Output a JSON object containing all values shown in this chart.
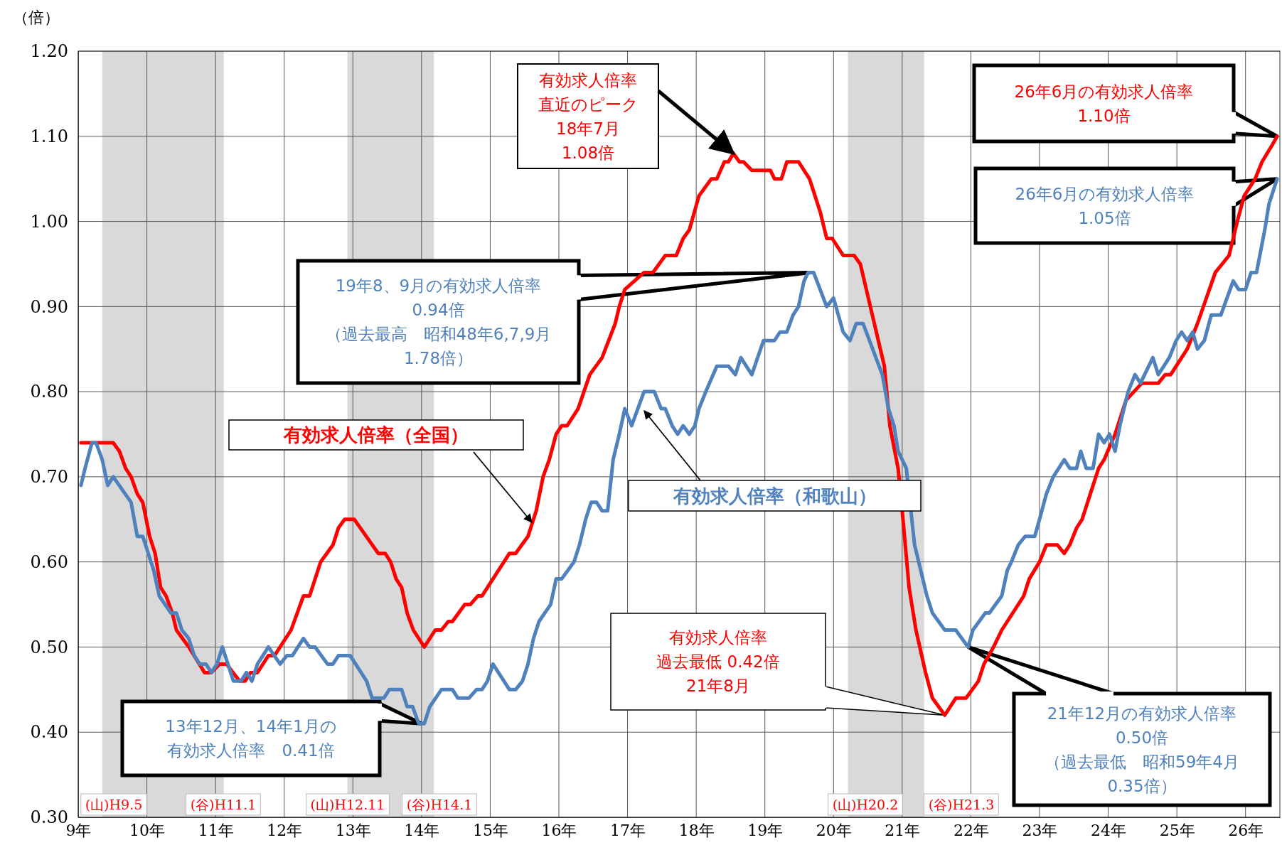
{
  "chart_data": {
    "type": "line",
    "ylabel": "（倍）",
    "xlim": [
      9,
      26.5
    ],
    "xticks": [
      {
        "value": 9,
        "label": "9年"
      },
      {
        "value": 10,
        "label": "10年"
      },
      {
        "value": 11,
        "label": "11年"
      },
      {
        "value": 12,
        "label": "12年"
      },
      {
        "value": 13,
        "label": "13年"
      },
      {
        "value": 14,
        "label": "14年"
      },
      {
        "value": 15,
        "label": "15年"
      },
      {
        "value": 16,
        "label": "16年"
      },
      {
        "value": 17,
        "label": "17年"
      },
      {
        "value": 18,
        "label": "18年"
      },
      {
        "value": 19,
        "label": "19年"
      },
      {
        "value": 20,
        "label": "20年"
      },
      {
        "value": 21,
        "label": "21年"
      },
      {
        "value": 22,
        "label": "22年"
      },
      {
        "value": 23,
        "label": "23年"
      },
      {
        "value": 24,
        "label": "24年"
      },
      {
        "value": 25,
        "label": "25年"
      },
      {
        "value": 26,
        "label": "26年"
      }
    ],
    "ylim": [
      0.3,
      1.2
    ],
    "yticks": [
      {
        "value": 0.3,
        "label": "0.30"
      },
      {
        "value": 0.4,
        "label": "0.40"
      },
      {
        "value": 0.5,
        "label": "0.50"
      },
      {
        "value": 0.6,
        "label": "0.60"
      },
      {
        "value": 0.7,
        "label": "0.70"
      },
      {
        "value": 0.8,
        "label": "0.80"
      },
      {
        "value": 0.9,
        "label": "0.90"
      },
      {
        "value": 1.0,
        "label": "1.00"
      },
      {
        "value": 1.1,
        "label": "1.10"
      },
      {
        "value": 1.2,
        "label": "1.20"
      }
    ],
    "grid": true,
    "legend": false,
    "marker": "none",
    "line_style": "solid",
    "bands": [
      {
        "axis": "x",
        "from": 9.35,
        "to": 11.12,
        "color": "#d9d9d9"
      },
      {
        "axis": "x",
        "from": 12.92,
        "to": 14.18,
        "color": "#d9d9d9"
      },
      {
        "axis": "x",
        "from": 20.21,
        "to": 21.32,
        "color": "#d9d9d9"
      }
    ],
    "series": [
      {
        "name": "有効求人倍率（全国）",
        "color": "#ff0000",
        "x": [
          9.04,
          9.51,
          9.6,
          9.69,
          9.77,
          9.86,
          9.94,
          10.04,
          10.12,
          10.2,
          10.28,
          10.37,
          10.43,
          10.61,
          10.84,
          10.94,
          11.06,
          11.16,
          11.35,
          11.43,
          11.51,
          11.61,
          11.77,
          11.86,
          12.1,
          12.28,
          12.37,
          12.53,
          12.71,
          12.79,
          12.88,
          13.02,
          13.37,
          13.47,
          13.55,
          13.63,
          13.71,
          13.79,
          13.88,
          14.04,
          14.2,
          14.29,
          14.39,
          14.45,
          14.63,
          14.71,
          14.82,
          14.88,
          15.28,
          15.37,
          15.55,
          15.67,
          15.77,
          15.86,
          15.96,
          16.04,
          16.12,
          16.28,
          16.45,
          16.63,
          16.82,
          16.88,
          16.96,
          17.24,
          17.37,
          17.55,
          17.71,
          17.81,
          17.9,
          18.04,
          18.22,
          18.3,
          18.41,
          18.47,
          18.54,
          18.63,
          18.69,
          18.81,
          19.08,
          19.14,
          19.24,
          19.32,
          19.49,
          19.65,
          19.81,
          19.9,
          19.98,
          20.14,
          20.3,
          20.39,
          20.74,
          20.82,
          20.94,
          21.0,
          21.1,
          21.2,
          21.34,
          21.44,
          21.62,
          21.78,
          21.93,
          22.11,
          22.19,
          22.33,
          22.45,
          22.77,
          22.85,
          23.0,
          23.1,
          23.26,
          23.36,
          23.44,
          23.54,
          23.62,
          23.86,
          23.94,
          24.1,
          24.26,
          24.49,
          24.73,
          24.83,
          24.91,
          25.15,
          25.3,
          25.56,
          25.76,
          25.88,
          25.98,
          26.14,
          26.24,
          26.39,
          26.46
        ],
        "values": [
          0.74,
          0.74,
          0.73,
          0.71,
          0.7,
          0.68,
          0.67,
          0.63,
          0.61,
          0.57,
          0.56,
          0.54,
          0.52,
          0.5,
          0.47,
          0.47,
          0.48,
          0.48,
          0.46,
          0.46,
          0.47,
          0.47,
          0.49,
          0.49,
          0.52,
          0.56,
          0.56,
          0.6,
          0.62,
          0.64,
          0.65,
          0.65,
          0.61,
          0.61,
          0.6,
          0.58,
          0.57,
          0.54,
          0.52,
          0.5,
          0.52,
          0.52,
          0.53,
          0.53,
          0.55,
          0.55,
          0.56,
          0.56,
          0.61,
          0.61,
          0.63,
          0.66,
          0.7,
          0.72,
          0.75,
          0.76,
          0.76,
          0.78,
          0.82,
          0.84,
          0.88,
          0.9,
          0.92,
          0.94,
          0.94,
          0.96,
          0.96,
          0.98,
          0.99,
          1.03,
          1.05,
          1.05,
          1.07,
          1.07,
          1.08,
          1.07,
          1.07,
          1.06,
          1.06,
          1.05,
          1.05,
          1.07,
          1.07,
          1.05,
          1.01,
          0.98,
          0.98,
          0.96,
          0.96,
          0.95,
          0.83,
          0.76,
          0.71,
          0.66,
          0.57,
          0.52,
          0.47,
          0.44,
          0.42,
          0.44,
          0.44,
          0.46,
          0.48,
          0.5,
          0.52,
          0.56,
          0.58,
          0.6,
          0.62,
          0.62,
          0.61,
          0.62,
          0.64,
          0.65,
          0.71,
          0.72,
          0.75,
          0.79,
          0.81,
          0.81,
          0.82,
          0.82,
          0.85,
          0.88,
          0.94,
          0.96,
          1.0,
          1.03,
          1.05,
          1.07,
          1.09,
          1.1
        ]
      },
      {
        "name": "有効求人倍率（和歌山）",
        "color": "#4f81bd",
        "x": [
          9.04,
          9.1,
          9.2,
          9.26,
          9.35,
          9.43,
          9.51,
          9.77,
          9.86,
          9.94,
          10.1,
          10.18,
          10.35,
          10.43,
          10.51,
          10.61,
          10.69,
          10.77,
          10.86,
          10.94,
          11.02,
          11.1,
          11.26,
          11.37,
          11.45,
          11.53,
          11.61,
          11.77,
          11.94,
          12.04,
          12.12,
          12.28,
          12.37,
          12.45,
          12.63,
          12.71,
          12.79,
          12.96,
          13.2,
          13.28,
          13.45,
          13.53,
          13.71,
          13.79,
          13.87,
          13.96,
          14.04,
          14.12,
          14.29,
          14.45,
          14.53,
          14.69,
          14.8,
          14.88,
          14.96,
          15.04,
          15.28,
          15.37,
          15.47,
          15.55,
          15.63,
          15.71,
          15.88,
          15.96,
          16.04,
          16.22,
          16.3,
          16.39,
          16.47,
          16.55,
          16.63,
          16.71,
          16.79,
          16.88,
          16.96,
          17.06,
          17.24,
          17.39,
          17.49,
          17.55,
          17.65,
          17.73,
          17.81,
          17.9,
          17.98,
          18.04,
          18.14,
          18.3,
          18.47,
          18.57,
          18.65,
          18.81,
          18.98,
          19.14,
          19.22,
          19.32,
          19.41,
          19.49,
          19.57,
          19.63,
          19.71,
          19.9,
          20.0,
          20.14,
          20.24,
          20.33,
          20.43,
          20.57,
          20.71,
          20.8,
          20.88,
          20.94,
          21.06,
          21.18,
          21.36,
          21.44,
          21.62,
          21.78,
          21.96,
          22.03,
          22.21,
          22.27,
          22.45,
          22.53,
          22.59,
          22.69,
          22.79,
          22.93,
          23.0,
          23.1,
          23.2,
          23.36,
          23.44,
          23.54,
          23.6,
          23.68,
          23.78,
          23.86,
          23.94,
          24.02,
          24.1,
          24.17,
          24.29,
          24.39,
          24.47,
          24.65,
          24.73,
          24.89,
          24.99,
          25.07,
          25.15,
          25.23,
          25.3,
          25.4,
          25.5,
          25.64,
          25.82,
          25.9,
          26.0,
          26.08,
          26.16,
          26.28,
          26.34,
          26.46
        ],
        "values": [
          0.69,
          0.71,
          0.74,
          0.74,
          0.72,
          0.69,
          0.7,
          0.67,
          0.63,
          0.63,
          0.59,
          0.56,
          0.54,
          0.54,
          0.52,
          0.51,
          0.49,
          0.48,
          0.48,
          0.47,
          0.48,
          0.5,
          0.46,
          0.46,
          0.47,
          0.46,
          0.48,
          0.5,
          0.48,
          0.49,
          0.49,
          0.51,
          0.5,
          0.5,
          0.48,
          0.48,
          0.49,
          0.49,
          0.46,
          0.44,
          0.44,
          0.45,
          0.45,
          0.43,
          0.43,
          0.41,
          0.41,
          0.43,
          0.45,
          0.45,
          0.44,
          0.44,
          0.45,
          0.45,
          0.46,
          0.48,
          0.45,
          0.45,
          0.46,
          0.48,
          0.51,
          0.53,
          0.55,
          0.58,
          0.58,
          0.6,
          0.62,
          0.65,
          0.67,
          0.67,
          0.66,
          0.66,
          0.72,
          0.75,
          0.78,
          0.76,
          0.8,
          0.8,
          0.78,
          0.78,
          0.76,
          0.75,
          0.76,
          0.75,
          0.76,
          0.78,
          0.8,
          0.83,
          0.83,
          0.82,
          0.84,
          0.82,
          0.86,
          0.86,
          0.87,
          0.87,
          0.89,
          0.9,
          0.93,
          0.94,
          0.94,
          0.9,
          0.91,
          0.87,
          0.86,
          0.88,
          0.88,
          0.85,
          0.82,
          0.78,
          0.76,
          0.73,
          0.71,
          0.62,
          0.56,
          0.54,
          0.52,
          0.52,
          0.5,
          0.52,
          0.54,
          0.54,
          0.56,
          0.59,
          0.6,
          0.62,
          0.63,
          0.63,
          0.65,
          0.68,
          0.7,
          0.72,
          0.71,
          0.71,
          0.73,
          0.71,
          0.71,
          0.75,
          0.74,
          0.75,
          0.73,
          0.76,
          0.8,
          0.82,
          0.81,
          0.84,
          0.82,
          0.84,
          0.86,
          0.87,
          0.86,
          0.87,
          0.85,
          0.86,
          0.89,
          0.89,
          0.93,
          0.92,
          0.92,
          0.94,
          0.94,
          0.99,
          1.02,
          1.05
        ]
      }
    ],
    "annotations": [
      {
        "text": "有効求人倍率直近のピーク18年7月1.08倍",
        "x": 18.54,
        "y": 1.08
      },
      {
        "text": "26年6月の有効求人倍率1.10倍",
        "x": 26.46,
        "y": 1.1
      },
      {
        "text": "26年6月の有効求人倍率1.05倍",
        "x": 26.46,
        "y": 1.05
      },
      {
        "text": "19年8、9月の有効求人倍率0.94倍（過去最高　昭和48年6,7,9月1.78倍）",
        "x": 19.67,
        "y": 0.94
      },
      {
        "text": "13年12月、14年1月の有効求人倍率　0.41倍",
        "x": 14.0,
        "y": 0.41
      },
      {
        "text": "有効求人倍率過去最低 0.42倍21年8月",
        "x": 21.62,
        "y": 0.42
      },
      {
        "text": "21年12月の有効求人倍率0.50倍（過去最低　昭和59年4月0.35倍）",
        "x": 21.96,
        "y": 0.5
      },
      "(山)H9.5",
      "(谷)H11.1",
      "(山)H12.11",
      "(谷)H14.1",
      "(山)H20.2",
      "(谷)H21.3"
    ]
  }
}
